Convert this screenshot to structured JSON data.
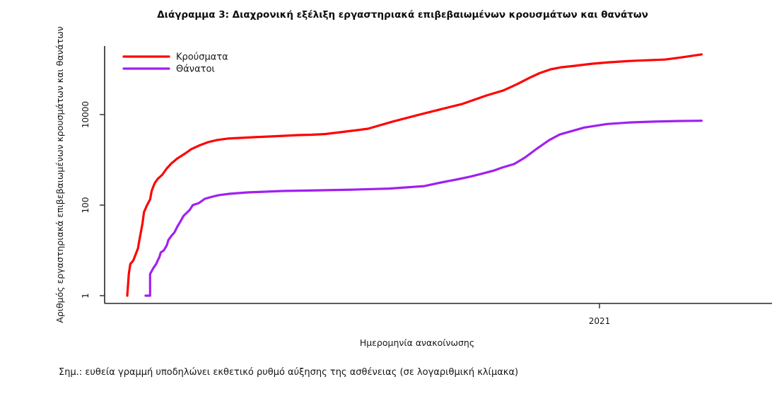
{
  "title": "Διάγραμμα 3: Διαχρονική εξέλιξη εργαστηριακά επιβεβαιωμένων κρουσμάτων και θανάτων",
  "note": "Σημ.: ευθεία γραμμή υποδηλώνει εκθετικό ρυθμό αύξησης της ασθένειας (σε λογαριθμική κλίμακα)",
  "chart_data": {
    "type": "line",
    "x_axis": {
      "label": "Ημερομηνία ανακοίνωσης",
      "scale": "time",
      "ticks": [
        {
          "label": "2021",
          "date": "2021-01-01"
        }
      ],
      "range_dates": [
        "2020-02-11",
        "2021-04-25"
      ]
    },
    "y_axis": {
      "label": "Αριθμός εργαστηριακά επιβεβαιωμένων κρουσμάτων και θανάτων",
      "scale": "log",
      "ticks": [
        1,
        100,
        10000
      ],
      "range": [
        1,
        330000
      ],
      "grid": false
    },
    "legend": {
      "position": "top-left",
      "entries": [
        {
          "label": "Κρούσματα",
          "color": "#ff0000"
        },
        {
          "label": "Θάνατοι",
          "color": "#a020f0"
        }
      ]
    },
    "series": [
      {
        "name": "Κρούσματα",
        "color": "#ff0000",
        "points": [
          [
            "2020-02-26",
            1
          ],
          [
            "2020-02-27",
            3
          ],
          [
            "2020-02-28",
            5
          ],
          [
            "2020-03-01",
            6
          ],
          [
            "2020-03-03",
            9
          ],
          [
            "2020-03-04",
            11
          ],
          [
            "2020-03-05",
            17
          ],
          [
            "2020-03-07",
            39
          ],
          [
            "2020-03-08",
            70
          ],
          [
            "2020-03-10",
            100
          ],
          [
            "2020-03-12",
            133
          ],
          [
            "2020-03-13",
            205
          ],
          [
            "2020-03-15",
            305
          ],
          [
            "2020-03-17",
            380
          ],
          [
            "2020-03-20",
            470
          ],
          [
            "2020-03-23",
            650
          ],
          [
            "2020-03-26",
            835
          ],
          [
            "2020-03-30",
            1080
          ],
          [
            "2020-04-04",
            1380
          ],
          [
            "2020-04-08",
            1720
          ],
          [
            "2020-04-13",
            2060
          ],
          [
            "2020-04-19",
            2460
          ],
          [
            "2020-04-25",
            2750
          ],
          [
            "2020-05-02",
            2950
          ],
          [
            "2020-05-11",
            3060
          ],
          [
            "2020-05-20",
            3170
          ],
          [
            "2020-05-29",
            3280
          ],
          [
            "2020-06-08",
            3400
          ],
          [
            "2020-06-17",
            3520
          ],
          [
            "2020-06-26",
            3590
          ],
          [
            "2020-07-05",
            3720
          ],
          [
            "2020-07-15",
            4080
          ],
          [
            "2020-07-24",
            4450
          ],
          [
            "2020-08-02",
            4870
          ],
          [
            "2020-08-18",
            6960
          ],
          [
            "2020-09-03",
            9600
          ],
          [
            "2020-09-18",
            12900
          ],
          [
            "2020-10-03",
            17200
          ],
          [
            "2020-10-19",
            26500
          ],
          [
            "2020-10-30",
            34200
          ],
          [
            "2020-11-08",
            47200
          ],
          [
            "2020-11-16",
            64800
          ],
          [
            "2020-11-23",
            83200
          ],
          [
            "2020-11-30",
            100000
          ],
          [
            "2020-12-07",
            111000
          ],
          [
            "2020-12-16",
            119500
          ],
          [
            "2020-12-27",
            133000
          ],
          [
            "2021-01-07",
            143000
          ],
          [
            "2021-01-21",
            153000
          ],
          [
            "2021-02-01",
            158500
          ],
          [
            "2021-02-13",
            164500
          ],
          [
            "2021-02-24",
            183500
          ],
          [
            "2021-03-09",
            213500
          ]
        ]
      },
      {
        "name": "Θάνατοι",
        "color": "#a020f0",
        "points": [
          [
            "2020-03-09",
            1
          ],
          [
            "2020-03-12",
            1
          ],
          [
            "2020-03-12",
            3
          ],
          [
            "2020-03-14",
            4
          ],
          [
            "2020-03-16",
            5
          ],
          [
            "2020-03-17",
            6
          ],
          [
            "2020-03-18",
            7
          ],
          [
            "2020-03-19",
            9
          ],
          [
            "2020-03-21",
            10
          ],
          [
            "2020-03-23",
            13
          ],
          [
            "2020-03-24",
            17
          ],
          [
            "2020-03-26",
            21
          ],
          [
            "2020-03-28",
            25
          ],
          [
            "2020-03-30",
            34
          ],
          [
            "2020-04-01",
            44
          ],
          [
            "2020-04-03",
            58
          ],
          [
            "2020-04-07",
            78
          ],
          [
            "2020-04-09",
            100
          ],
          [
            "2020-04-13",
            111
          ],
          [
            "2020-04-17",
            138
          ],
          [
            "2020-04-22",
            154
          ],
          [
            "2020-04-26",
            166
          ],
          [
            "2020-05-03",
            178
          ],
          [
            "2020-05-15",
            191
          ],
          [
            "2020-06-07",
            205
          ],
          [
            "2020-06-30",
            212
          ],
          [
            "2020-07-23",
            220
          ],
          [
            "2020-08-16",
            232
          ],
          [
            "2020-09-08",
            263
          ],
          [
            "2020-09-19",
            316
          ],
          [
            "2020-10-01",
            378
          ],
          [
            "2020-10-08",
            424
          ],
          [
            "2020-10-15",
            485
          ],
          [
            "2020-10-24",
            584
          ],
          [
            "2020-10-29",
            673
          ],
          [
            "2020-11-06",
            810
          ],
          [
            "2020-11-13",
            1120
          ],
          [
            "2020-11-21",
            1780
          ],
          [
            "2020-11-29",
            2730
          ],
          [
            "2020-12-06",
            3640
          ],
          [
            "2020-12-14",
            4340
          ],
          [
            "2020-12-22",
            5180
          ],
          [
            "2021-01-06",
            6200
          ],
          [
            "2021-01-21",
            6700
          ],
          [
            "2021-02-06",
            7000
          ],
          [
            "2021-02-21",
            7200
          ],
          [
            "2021-03-09",
            7300
          ]
        ]
      }
    ]
  }
}
